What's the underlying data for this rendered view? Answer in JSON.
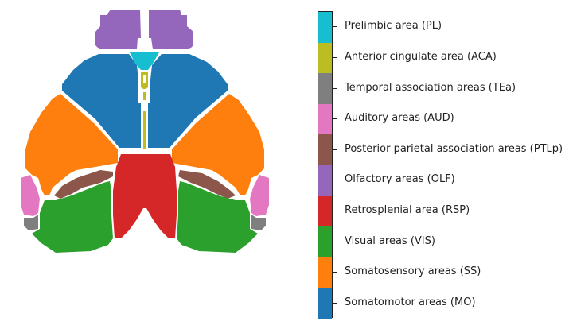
{
  "colorbar": {
    "items": [
      {
        "label": "Prelimbic area (PL)",
        "color": "#17becf"
      },
      {
        "label": "Anterior cingulate area (ACA)",
        "color": "#bcbd22"
      },
      {
        "label": "Temporal association areas (TEa)",
        "color": "#7f7f7f"
      },
      {
        "label": "Auditory areas (AUD)",
        "color": "#e377c2"
      },
      {
        "label": "Posterior parietal association areas (PTLp)",
        "color": "#8c564b"
      },
      {
        "label": "Olfactory areas (OLF)",
        "color": "#9467bd"
      },
      {
        "label": "Retrosplenial area (RSP)",
        "color": "#d62728"
      },
      {
        "label": "Visual areas (VIS)",
        "color": "#2ca02c"
      },
      {
        "label": "Somatosensory areas (SS)",
        "color": "#ff7f0e"
      },
      {
        "label": "Somatomotor areas (MO)",
        "color": "#1f77b4"
      }
    ]
  }
}
